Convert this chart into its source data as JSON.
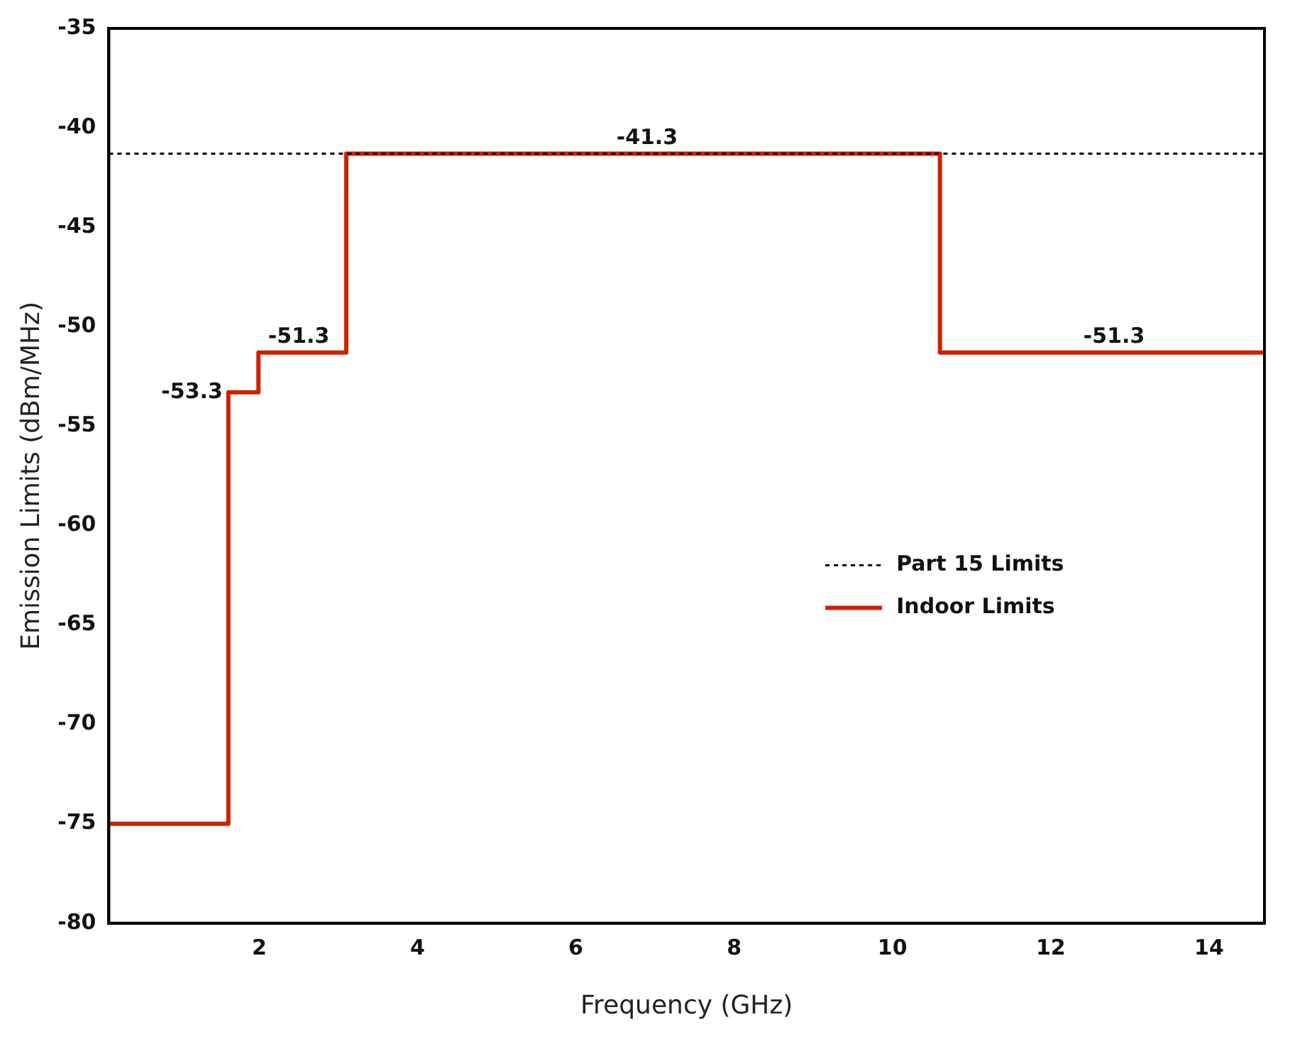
{
  "chart_data": {
    "type": "step",
    "xlabel": "Frequency (GHz)",
    "ylabel": "Emission Limits (dBm/MHz)",
    "xlim": [
      0.1,
      14.7
    ],
    "xticks": [
      2,
      4,
      6,
      8,
      10,
      12,
      14
    ],
    "ylim": [
      -80,
      -35
    ],
    "yticks": [
      -80,
      -75,
      -70,
      -65,
      -60,
      -55,
      -50,
      -45,
      -40,
      -35
    ],
    "grid": false,
    "legend": "right",
    "marker": "none",
    "series": [
      {
        "name": "Part 15 Limits",
        "type": "line",
        "color": "#000000",
        "line_style": "dotted",
        "x": [
          0.1,
          14.7
        ],
        "values": [
          -41.3,
          -41.3
        ]
      },
      {
        "name": "Indoor Limits",
        "color": "#cc2200",
        "line_style": "solid",
        "x": [
          0.1,
          1.61,
          1.99,
          3.1,
          10.6,
          14.7
        ],
        "values": [
          -75,
          -53.3,
          -51.3,
          -41.3,
          -51.3,
          -51.3
        ]
      }
    ],
    "annotations": [
      {
        "text": "-53.3",
        "x": 1.61,
        "y": -53.3
      },
      {
        "text": "-51.3",
        "x": 2.5,
        "y": -51.3
      },
      {
        "text": "-41.3",
        "x": 6.9,
        "y": -41.3
      },
      {
        "text": "-51.3",
        "x": 12.8,
        "y": -51.3
      }
    ]
  }
}
